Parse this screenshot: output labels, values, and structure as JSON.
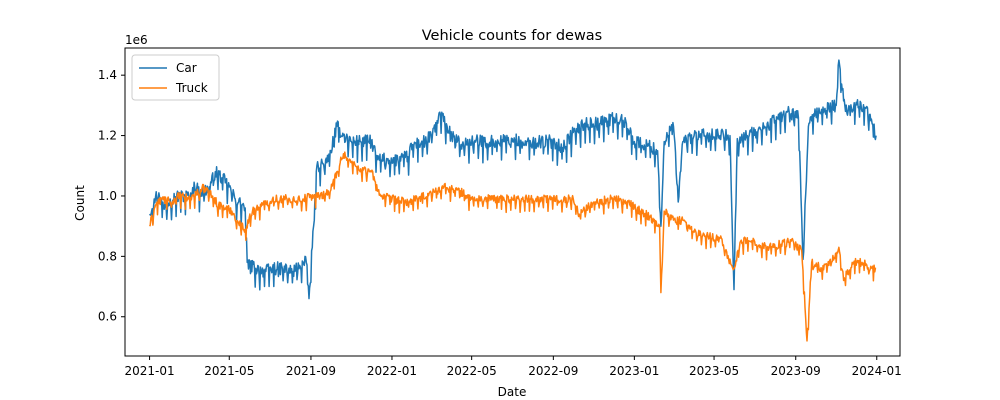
{
  "chart_data": {
    "type": "line",
    "title": "Vehicle counts for dewas",
    "xlabel": "Date",
    "ylabel": "Count",
    "y_scale_label": "1e6",
    "x_range": [
      "2021-01-01",
      "2023-12-31"
    ],
    "xlim": [
      "2020-11-25",
      "2024-02-05"
    ],
    "ylim": [
      470000,
      1490000
    ],
    "x_ticks": [
      {
        "date": "2021-01-01",
        "label": "2021-01"
      },
      {
        "date": "2021-05-01",
        "label": "2021-05"
      },
      {
        "date": "2021-09-01",
        "label": "2021-09"
      },
      {
        "date": "2022-01-01",
        "label": "2022-01"
      },
      {
        "date": "2022-05-01",
        "label": "2022-05"
      },
      {
        "date": "2022-09-01",
        "label": "2022-09"
      },
      {
        "date": "2023-01-01",
        "label": "2023-01"
      },
      {
        "date": "2023-05-01",
        "label": "2023-05"
      },
      {
        "date": "2023-09-01",
        "label": "2023-09"
      },
      {
        "date": "2024-01-01",
        "label": "2024-01"
      }
    ],
    "y_ticks": [
      {
        "value": 600000,
        "label": "0.6"
      },
      {
        "value": 800000,
        "label": "0.8"
      },
      {
        "value": 1000000,
        "label": "1.0"
      },
      {
        "value": 1200000,
        "label": "1.2"
      },
      {
        "value": 1400000,
        "label": "1.4"
      }
    ],
    "grid": false,
    "legend_position": "top-left",
    "series": [
      {
        "name": "Car",
        "color": "#1f77b4",
        "points": [
          [
            "2021-01-01",
            940000
          ],
          [
            "2021-01-08",
            990000
          ],
          [
            "2021-01-15",
            1010000
          ],
          [
            "2021-01-22",
            960000
          ],
          [
            "2021-02-01",
            990000
          ],
          [
            "2021-02-15",
            1000000
          ],
          [
            "2021-03-01",
            1000000
          ],
          [
            "2021-03-10",
            1030000
          ],
          [
            "2021-03-20",
            1010000
          ],
          [
            "2021-04-01",
            1030000
          ],
          [
            "2021-04-10",
            1080000
          ],
          [
            "2021-04-20",
            1060000
          ],
          [
            "2021-05-01",
            1030000
          ],
          [
            "2021-05-10",
            990000
          ],
          [
            "2021-05-20",
            970000
          ],
          [
            "2021-05-25",
            960000
          ],
          [
            "2021-05-28",
            780000
          ],
          [
            "2021-06-10",
            760000
          ],
          [
            "2021-06-25",
            750000
          ],
          [
            "2021-07-05",
            760000
          ],
          [
            "2021-07-20",
            760000
          ],
          [
            "2021-08-05",
            750000
          ],
          [
            "2021-08-15",
            770000
          ],
          [
            "2021-08-25",
            780000
          ],
          [
            "2021-08-29",
            660000
          ],
          [
            "2021-09-05",
            900000
          ],
          [
            "2021-09-10",
            1100000
          ],
          [
            "2021-09-25",
            1110000
          ],
          [
            "2021-10-01",
            1150000
          ],
          [
            "2021-10-10",
            1230000
          ],
          [
            "2021-10-20",
            1200000
          ],
          [
            "2021-11-01",
            1180000
          ],
          [
            "2021-11-15",
            1180000
          ],
          [
            "2021-12-01",
            1180000
          ],
          [
            "2021-12-10",
            1120000
          ],
          [
            "2021-12-25",
            1120000
          ],
          [
            "2022-01-10",
            1120000
          ],
          [
            "2022-01-25",
            1130000
          ],
          [
            "2022-02-01",
            1170000
          ],
          [
            "2022-02-20",
            1180000
          ],
          [
            "2022-03-01",
            1200000
          ],
          [
            "2022-03-15",
            1270000
          ],
          [
            "2022-04-01",
            1200000
          ],
          [
            "2022-04-15",
            1170000
          ],
          [
            "2022-05-01",
            1180000
          ],
          [
            "2022-05-20",
            1180000
          ],
          [
            "2022-06-10",
            1180000
          ],
          [
            "2022-07-01",
            1190000
          ],
          [
            "2022-07-20",
            1170000
          ],
          [
            "2022-08-10",
            1180000
          ],
          [
            "2022-09-01",
            1180000
          ],
          [
            "2022-09-15",
            1160000
          ],
          [
            "2022-10-01",
            1210000
          ],
          [
            "2022-10-20",
            1240000
          ],
          [
            "2022-11-10",
            1240000
          ],
          [
            "2022-12-01",
            1260000
          ],
          [
            "2022-12-20",
            1240000
          ],
          [
            "2023-01-01",
            1180000
          ],
          [
            "2023-01-20",
            1170000
          ],
          [
            "2023-02-05",
            1150000
          ],
          [
            "2023-02-10",
            900000
          ],
          [
            "2023-02-15",
            1180000
          ],
          [
            "2023-03-01",
            1230000
          ],
          [
            "2023-03-08",
            980000
          ],
          [
            "2023-03-15",
            1180000
          ],
          [
            "2023-04-01",
            1200000
          ],
          [
            "2023-04-20",
            1200000
          ],
          [
            "2023-05-10",
            1200000
          ],
          [
            "2023-05-25",
            1200000
          ],
          [
            "2023-05-31",
            690000
          ],
          [
            "2023-06-05",
            1190000
          ],
          [
            "2023-06-20",
            1200000
          ],
          [
            "2023-07-10",
            1220000
          ],
          [
            "2023-08-01",
            1250000
          ],
          [
            "2023-08-20",
            1280000
          ],
          [
            "2023-09-05",
            1260000
          ],
          [
            "2023-09-12",
            790000
          ],
          [
            "2023-09-20",
            1230000
          ],
          [
            "2023-10-01",
            1270000
          ],
          [
            "2023-10-15",
            1290000
          ],
          [
            "2023-11-01",
            1300000
          ],
          [
            "2023-11-05",
            1450000
          ],
          [
            "2023-11-15",
            1280000
          ],
          [
            "2023-12-01",
            1310000
          ],
          [
            "2023-12-15",
            1290000
          ],
          [
            "2023-12-31",
            1200000
          ]
        ]
      },
      {
        "name": "Truck",
        "color": "#ff7f0e",
        "points": [
          [
            "2021-01-01",
            900000
          ],
          [
            "2021-01-10",
            970000
          ],
          [
            "2021-01-20",
            990000
          ],
          [
            "2021-02-01",
            980000
          ],
          [
            "2021-02-15",
            1000000
          ],
          [
            "2021-03-01",
            990000
          ],
          [
            "2021-03-15",
            1010000
          ],
          [
            "2021-03-25",
            1030000
          ],
          [
            "2021-04-05",
            1000000
          ],
          [
            "2021-04-15",
            970000
          ],
          [
            "2021-04-25",
            960000
          ],
          [
            "2021-05-05",
            950000
          ],
          [
            "2021-05-15",
            910000
          ],
          [
            "2021-05-25",
            890000
          ],
          [
            "2021-06-05",
            950000
          ],
          [
            "2021-06-20",
            970000
          ],
          [
            "2021-07-05",
            990000
          ],
          [
            "2021-07-20",
            990000
          ],
          [
            "2021-08-05",
            990000
          ],
          [
            "2021-08-20",
            990000
          ],
          [
            "2021-09-01",
            1000000
          ],
          [
            "2021-09-15",
            1000000
          ],
          [
            "2021-10-01",
            1020000
          ],
          [
            "2021-10-10",
            1080000
          ],
          [
            "2021-10-20",
            1140000
          ],
          [
            "2021-11-01",
            1110000
          ],
          [
            "2021-11-15",
            1090000
          ],
          [
            "2021-12-01",
            1080000
          ],
          [
            "2021-12-15",
            1000000
          ],
          [
            "2022-01-01",
            990000
          ],
          [
            "2022-01-20",
            980000
          ],
          [
            "2022-02-10",
            990000
          ],
          [
            "2022-03-01",
            1010000
          ],
          [
            "2022-03-20",
            1030000
          ],
          [
            "2022-04-10",
            1020000
          ],
          [
            "2022-05-01",
            990000
          ],
          [
            "2022-06-01",
            990000
          ],
          [
            "2022-07-01",
            990000
          ],
          [
            "2022-08-01",
            990000
          ],
          [
            "2022-09-01",
            990000
          ],
          [
            "2022-10-01",
            990000
          ],
          [
            "2022-10-10",
            940000
          ],
          [
            "2022-11-01",
            980000
          ],
          [
            "2022-12-01",
            990000
          ],
          [
            "2022-12-20",
            980000
          ],
          [
            "2023-01-10",
            950000
          ],
          [
            "2023-01-25",
            930000
          ],
          [
            "2023-02-08",
            900000
          ],
          [
            "2023-02-10",
            680000
          ],
          [
            "2023-02-15",
            950000
          ],
          [
            "2023-03-01",
            920000
          ],
          [
            "2023-03-15",
            920000
          ],
          [
            "2023-04-01",
            880000
          ],
          [
            "2023-04-20",
            870000
          ],
          [
            "2023-05-10",
            860000
          ],
          [
            "2023-05-31",
            760000
          ],
          [
            "2023-06-10",
            850000
          ],
          [
            "2023-07-01",
            850000
          ],
          [
            "2023-07-20",
            830000
          ],
          [
            "2023-08-10",
            840000
          ],
          [
            "2023-08-25",
            850000
          ],
          [
            "2023-09-10",
            820000
          ],
          [
            "2023-09-18",
            520000
          ],
          [
            "2023-09-25",
            780000
          ],
          [
            "2023-10-10",
            760000
          ],
          [
            "2023-10-25",
            780000
          ],
          [
            "2023-11-05",
            830000
          ],
          [
            "2023-11-12",
            720000
          ],
          [
            "2023-11-25",
            780000
          ],
          [
            "2023-12-10",
            780000
          ],
          [
            "2023-12-25",
            760000
          ],
          [
            "2023-12-31",
            760000
          ]
        ]
      }
    ]
  }
}
